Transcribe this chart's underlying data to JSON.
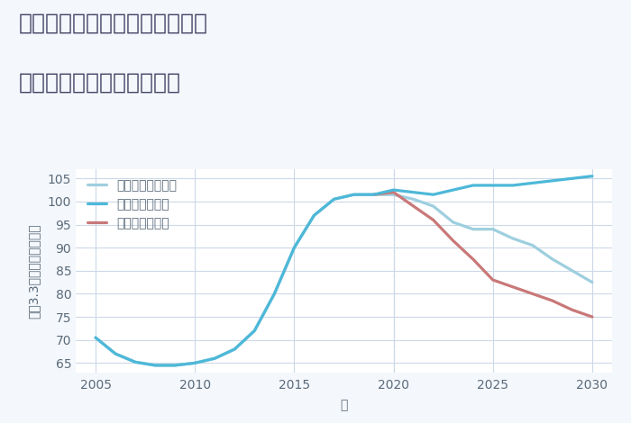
{
  "title_line1": "福岡県築上郡築上町上ノ河内の",
  "title_line2": "中古マンションの価格推移",
  "xlabel": "年",
  "ylabel": "坪（3.3㎡）単価（万円）",
  "xlim": [
    2004,
    2031
  ],
  "ylim": [
    63,
    107
  ],
  "yticks": [
    65,
    70,
    75,
    80,
    85,
    90,
    95,
    100,
    105
  ],
  "xticks": [
    2005,
    2010,
    2015,
    2020,
    2025,
    2030
  ],
  "background_color": "#f4f7fb",
  "plot_bg_color": "#ffffff",
  "grid_color": "#ccd9e8",
  "good_color": "#4db8d8",
  "bad_color": "#c97878",
  "normal_color": "#9ecfdf",
  "good_label": "グッドシナリオ",
  "bad_label": "バッドシナリオ",
  "normal_label": "ノーマルシナリオ",
  "title_color": "#444466",
  "axis_color": "#5a6a7a",
  "tick_color": "#5a6a7a",
  "good_scenario": {
    "x": [
      2005,
      2006,
      2007,
      2008,
      2009,
      2010,
      2011,
      2012,
      2013,
      2014,
      2015,
      2016,
      2017,
      2018,
      2019,
      2020,
      2021,
      2022,
      2023,
      2024,
      2025,
      2026,
      2027,
      2028,
      2029,
      2030
    ],
    "y": [
      70.5,
      67.0,
      65.2,
      64.5,
      64.5,
      65.0,
      66.0,
      68.0,
      72.0,
      80.0,
      90.0,
      97.0,
      100.5,
      101.5,
      101.5,
      102.5,
      102.0,
      101.5,
      102.5,
      103.5,
      103.5,
      103.5,
      104.0,
      104.5,
      105.0,
      105.5
    ]
  },
  "bad_scenario": {
    "x": [
      2019,
      2020,
      2021,
      2022,
      2023,
      2024,
      2025,
      2026,
      2027,
      2028,
      2029,
      2030
    ],
    "y": [
      101.5,
      102.0,
      99.0,
      96.0,
      91.5,
      87.5,
      83.0,
      81.5,
      80.0,
      78.5,
      76.5,
      75.0
    ]
  },
  "normal_scenario": {
    "x": [
      2005,
      2006,
      2007,
      2008,
      2009,
      2010,
      2011,
      2012,
      2013,
      2014,
      2015,
      2016,
      2017,
      2018,
      2019,
      2020,
      2021,
      2022,
      2023,
      2024,
      2025,
      2026,
      2027,
      2028,
      2029,
      2030
    ],
    "y": [
      70.5,
      67.0,
      65.2,
      64.5,
      64.5,
      65.0,
      66.0,
      68.0,
      72.0,
      80.0,
      90.0,
      97.0,
      100.5,
      101.5,
      101.5,
      101.5,
      100.5,
      99.0,
      95.5,
      94.0,
      94.0,
      92.0,
      90.5,
      87.5,
      85.0,
      82.5
    ]
  },
  "linewidth": 2.3,
  "title_fontsize": 18,
  "label_fontsize": 10,
  "tick_fontsize": 10,
  "legend_fontsize": 10
}
